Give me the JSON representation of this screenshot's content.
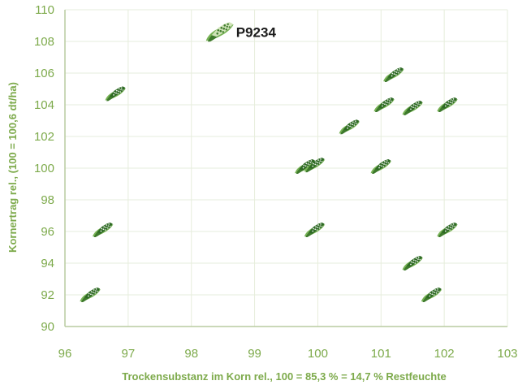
{
  "chart_data": {
    "type": "scatter",
    "xlabel": "Trockensubstanz im Korn rel., 100 = 85,3 % = 14,7 % Restfeuchte",
    "ylabel": "Kornertrag rel., (100 = 100,6 dt/ha)",
    "xlim": [
      96,
      103
    ],
    "ylim": [
      90,
      110
    ],
    "x_ticks": [
      "96",
      "97",
      "98",
      "99",
      "100",
      "101",
      "102",
      "103"
    ],
    "y_ticks": [
      "90",
      "92",
      "94",
      "96",
      "98",
      "100",
      "102",
      "104",
      "106",
      "108",
      "110"
    ],
    "grid": true,
    "marker": "corn-cob-icon",
    "points": [
      {
        "x": 96.4,
        "y": 92.0
      },
      {
        "x": 96.6,
        "y": 96.1
      },
      {
        "x": 96.8,
        "y": 104.7
      },
      {
        "x": 99.8,
        "y": 100.1
      },
      {
        "x": 99.95,
        "y": 100.2
      },
      {
        "x": 99.95,
        "y": 96.1
      },
      {
        "x": 100.5,
        "y": 102.6
      },
      {
        "x": 101.0,
        "y": 100.1
      },
      {
        "x": 101.05,
        "y": 104.0
      },
      {
        "x": 101.2,
        "y": 105.9
      },
      {
        "x": 101.5,
        "y": 94.0
      },
      {
        "x": 101.5,
        "y": 103.8
      },
      {
        "x": 101.8,
        "y": 92.0
      },
      {
        "x": 102.05,
        "y": 96.1
      },
      {
        "x": 102.05,
        "y": 104.0
      }
    ],
    "highlight": {
      "label": "P9234",
      "x": 98.45,
      "y": 108.6
    }
  },
  "colors": {
    "axis_text": "#7daa4b",
    "grid": "#e6eddc",
    "axis_line": "#b9cca0",
    "marker_dark": "#3e7a2c",
    "marker_light": "#77b255",
    "label": "#1b1b1b"
  }
}
